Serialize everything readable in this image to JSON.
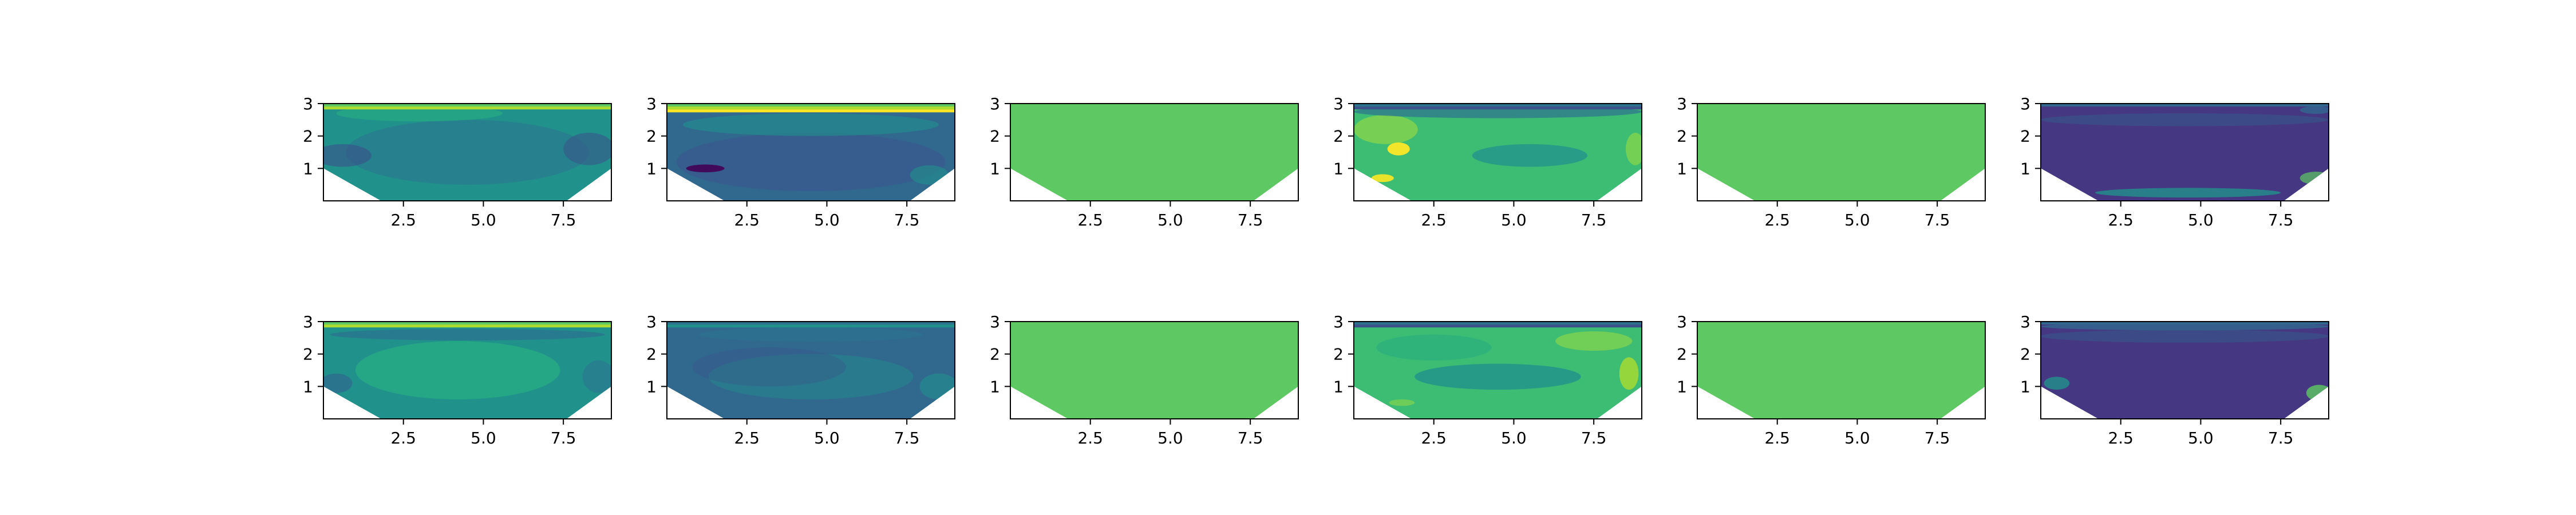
{
  "figure": {
    "title": "",
    "rows": 2,
    "cols": 6
  },
  "chart_data": [
    {
      "type": "contour",
      "row": 0,
      "col": 0,
      "xlim": [
        0,
        9
      ],
      "ylim": [
        0,
        3
      ],
      "x_ticks": [
        2.5,
        5.0,
        7.5
      ],
      "x_tick_labels": [
        "2.5",
        "5.0",
        "7.5"
      ],
      "y_ticks": [
        1,
        2,
        3
      ],
      "y_tick_labels": [
        "1",
        "2",
        "3"
      ],
      "domain_boundary": [
        [
          0,
          1.0
        ],
        [
          1.8,
          0
        ],
        [
          7.6,
          0
        ],
        [
          9,
          1.0
        ],
        [
          9,
          3
        ],
        [
          0,
          3
        ]
      ],
      "fill": {
        "base": "#21918c",
        "accents": [
          "#2c728e",
          "#3b528b",
          "#27ad81"
        ],
        "top_strip": [
          "#5ec962",
          "#addc30"
        ]
      }
    },
    {
      "type": "contour",
      "row": 0,
      "col": 1,
      "xlim": [
        0,
        9
      ],
      "ylim": [
        0,
        3
      ],
      "x_ticks": [
        2.5,
        5.0,
        7.5
      ],
      "x_tick_labels": [
        "2.5",
        "5.0",
        "7.5"
      ],
      "y_ticks": [
        1,
        2,
        3
      ],
      "y_tick_labels": [
        "1",
        "2",
        "3"
      ],
      "domain_boundary": [
        [
          0,
          1.0
        ],
        [
          1.8,
          0
        ],
        [
          7.6,
          0
        ],
        [
          9,
          1.0
        ],
        [
          9,
          3
        ],
        [
          0,
          3
        ]
      ],
      "fill": {
        "base": "#31688e",
        "accents": [
          "#3b528b",
          "#21918c",
          "#440154"
        ],
        "top_strip": [
          "#5ec962",
          "#addc30",
          "#fde725"
        ]
      }
    },
    {
      "type": "contour",
      "row": 0,
      "col": 2,
      "xlim": [
        0,
        9
      ],
      "ylim": [
        0,
        3
      ],
      "x_ticks": [
        2.5,
        5.0,
        7.5
      ],
      "x_tick_labels": [
        "2.5",
        "5.0",
        "7.5"
      ],
      "y_ticks": [
        1,
        2,
        3
      ],
      "y_tick_labels": [
        "1",
        "2",
        "3"
      ],
      "domain_boundary": [
        [
          0,
          1.0
        ],
        [
          1.8,
          0
        ],
        [
          7.6,
          0
        ],
        [
          9,
          1.0
        ],
        [
          9,
          3
        ],
        [
          0,
          3
        ]
      ],
      "fill": {
        "base": "#5ec962",
        "accents": [],
        "top_strip": []
      }
    },
    {
      "type": "contour",
      "row": 0,
      "col": 3,
      "xlim": [
        0,
        9
      ],
      "ylim": [
        0,
        3
      ],
      "x_ticks": [
        2.5,
        5.0,
        7.5
      ],
      "x_tick_labels": [
        "2.5",
        "5.0",
        "7.5"
      ],
      "y_ticks": [
        1,
        2,
        3
      ],
      "y_tick_labels": [
        "1",
        "2",
        "3"
      ],
      "domain_boundary": [
        [
          0,
          1.0
        ],
        [
          1.8,
          0
        ],
        [
          7.6,
          0
        ],
        [
          9,
          1.0
        ],
        [
          9,
          3
        ],
        [
          0,
          3
        ]
      ],
      "fill": {
        "base": "#3dbc74",
        "accents": [
          "#7ad151",
          "#21918c",
          "#fde725",
          "#2c728e"
        ],
        "top_strip": [
          "#2c728e",
          "#3b528b"
        ]
      }
    },
    {
      "type": "contour",
      "row": 0,
      "col": 4,
      "xlim": [
        0,
        9
      ],
      "ylim": [
        0,
        3
      ],
      "x_ticks": [
        2.5,
        5.0,
        7.5
      ],
      "x_tick_labels": [
        "2.5",
        "5.0",
        "7.5"
      ],
      "y_ticks": [
        1,
        2,
        3
      ],
      "y_tick_labels": [
        "1",
        "2",
        "3"
      ],
      "domain_boundary": [
        [
          0,
          1.0
        ],
        [
          1.8,
          0
        ],
        [
          7.6,
          0
        ],
        [
          9,
          1.0
        ],
        [
          9,
          3
        ],
        [
          0,
          3
        ]
      ],
      "fill": {
        "base": "#5ec962",
        "accents": [],
        "top_strip": []
      }
    },
    {
      "type": "contour",
      "row": 0,
      "col": 5,
      "xlim": [
        0,
        9
      ],
      "ylim": [
        0,
        3
      ],
      "x_ticks": [
        2.5,
        5.0,
        7.5
      ],
      "x_tick_labels": [
        "2.5",
        "5.0",
        "7.5"
      ],
      "y_ticks": [
        1,
        2,
        3
      ],
      "y_tick_labels": [
        "1",
        "2",
        "3"
      ],
      "domain_boundary": [
        [
          0,
          1.0
        ],
        [
          1.8,
          0
        ],
        [
          7.6,
          0
        ],
        [
          9,
          1.0
        ],
        [
          9,
          3
        ],
        [
          0,
          3
        ]
      ],
      "fill": {
        "base": "#453781",
        "accents": [
          "#3b528b",
          "#31688e",
          "#21918c",
          "#5ec962"
        ],
        "top_strip": [
          "#31688e"
        ]
      }
    },
    {
      "type": "contour",
      "row": 1,
      "col": 0,
      "xlim": [
        0,
        9
      ],
      "ylim": [
        0,
        3
      ],
      "x_ticks": [
        2.5,
        5.0,
        7.5
      ],
      "x_tick_labels": [
        "2.5",
        "5.0",
        "7.5"
      ],
      "y_ticks": [
        1,
        2,
        3
      ],
      "y_tick_labels": [
        "1",
        "2",
        "3"
      ],
      "domain_boundary": [
        [
          0,
          1.0
        ],
        [
          1.8,
          0
        ],
        [
          7.6,
          0
        ],
        [
          9,
          1.0
        ],
        [
          9,
          3
        ],
        [
          0,
          3
        ]
      ],
      "fill": {
        "base": "#21918c",
        "accents": [
          "#27ad81",
          "#2c728e",
          "#31688e"
        ],
        "top_strip": [
          "#5ec962",
          "#addc30"
        ]
      }
    },
    {
      "type": "contour",
      "row": 1,
      "col": 1,
      "xlim": [
        0,
        9
      ],
      "ylim": [
        0,
        3
      ],
      "x_ticks": [
        2.5,
        5.0,
        7.5
      ],
      "x_tick_labels": [
        "2.5",
        "5.0",
        "7.5"
      ],
      "y_ticks": [
        1,
        2,
        3
      ],
      "y_tick_labels": [
        "1",
        "2",
        "3"
      ],
      "domain_boundary": [
        [
          0,
          1.0
        ],
        [
          1.8,
          0
        ],
        [
          7.6,
          0
        ],
        [
          9,
          1.0
        ],
        [
          9,
          3
        ],
        [
          0,
          3
        ]
      ],
      "fill": {
        "base": "#31688e",
        "accents": [
          "#2c728e",
          "#21918c",
          "#3b528b"
        ],
        "top_strip": [
          "#2c728e",
          "#21918c"
        ]
      }
    },
    {
      "type": "contour",
      "row": 1,
      "col": 2,
      "xlim": [
        0,
        9
      ],
      "ylim": [
        0,
        3
      ],
      "x_ticks": [
        2.5,
        5.0,
        7.5
      ],
      "x_tick_labels": [
        "2.5",
        "5.0",
        "7.5"
      ],
      "y_ticks": [
        1,
        2,
        3
      ],
      "y_tick_labels": [
        "1",
        "2",
        "3"
      ],
      "domain_boundary": [
        [
          0,
          1.0
        ],
        [
          1.8,
          0
        ],
        [
          7.6,
          0
        ],
        [
          9,
          1.0
        ],
        [
          9,
          3
        ],
        [
          0,
          3
        ]
      ],
      "fill": {
        "base": "#5ec962",
        "accents": [],
        "top_strip": []
      }
    },
    {
      "type": "contour",
      "row": 1,
      "col": 3,
      "xlim": [
        0,
        9
      ],
      "ylim": [
        0,
        3
      ],
      "x_ticks": [
        2.5,
        5.0,
        7.5
      ],
      "x_tick_labels": [
        "2.5",
        "5.0",
        "7.5"
      ],
      "y_ticks": [
        1,
        2,
        3
      ],
      "y_tick_labels": [
        "1",
        "2",
        "3"
      ],
      "domain_boundary": [
        [
          0,
          1.0
        ],
        [
          1.8,
          0
        ],
        [
          7.6,
          0
        ],
        [
          9,
          1.0
        ],
        [
          9,
          3
        ],
        [
          0,
          3
        ]
      ],
      "fill": {
        "base": "#3dbc74",
        "accents": [
          "#21918c",
          "#7ad151",
          "#addc30",
          "#27ad81"
        ],
        "top_strip": [
          "#2c728e",
          "#3b528b"
        ]
      }
    },
    {
      "type": "contour",
      "row": 1,
      "col": 4,
      "xlim": [
        0,
        9
      ],
      "ylim": [
        0,
        3
      ],
      "x_ticks": [
        2.5,
        5.0,
        7.5
      ],
      "x_tick_labels": [
        "2.5",
        "5.0",
        "7.5"
      ],
      "y_ticks": [
        1,
        2,
        3
      ],
      "y_tick_labels": [
        "1",
        "2",
        "3"
      ],
      "domain_boundary": [
        [
          0,
          1.0
        ],
        [
          1.8,
          0
        ],
        [
          7.6,
          0
        ],
        [
          9,
          1.0
        ],
        [
          9,
          3
        ],
        [
          0,
          3
        ]
      ],
      "fill": {
        "base": "#5ec962",
        "accents": [],
        "top_strip": []
      }
    },
    {
      "type": "contour",
      "row": 1,
      "col": 5,
      "xlim": [
        0,
        9
      ],
      "ylim": [
        0,
        3
      ],
      "x_ticks": [
        2.5,
        5.0,
        7.5
      ],
      "x_tick_labels": [
        "2.5",
        "5.0",
        "7.5"
      ],
      "y_ticks": [
        1,
        2,
        3
      ],
      "y_tick_labels": [
        "1",
        "2",
        "3"
      ],
      "domain_boundary": [
        [
          0,
          1.0
        ],
        [
          1.8,
          0
        ],
        [
          7.6,
          0
        ],
        [
          9,
          1.0
        ],
        [
          9,
          3
        ],
        [
          0,
          3
        ]
      ],
      "fill": {
        "base": "#453781",
        "accents": [
          "#3b528b",
          "#31688e",
          "#21918c",
          "#5ec962"
        ],
        "top_strip": [
          "#31688e"
        ]
      }
    }
  ]
}
